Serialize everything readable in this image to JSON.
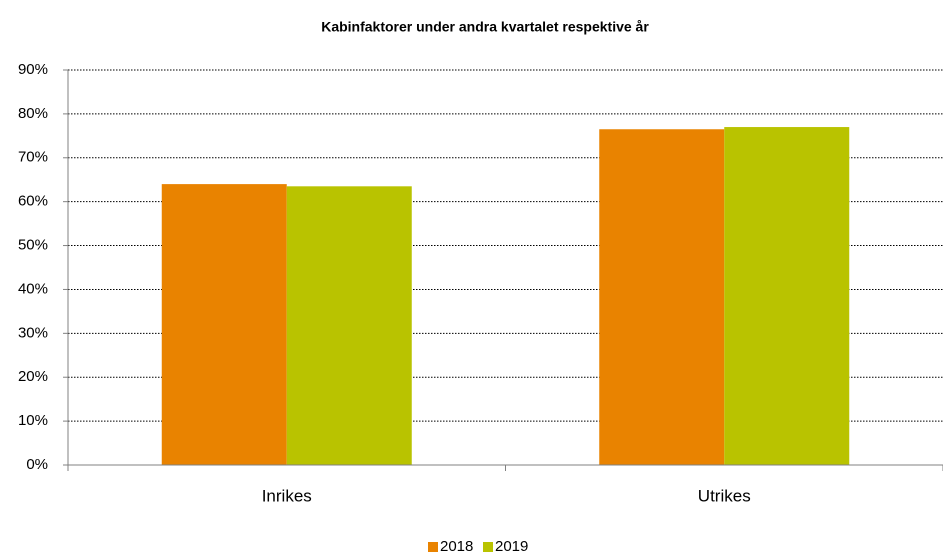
{
  "chart_data": {
    "type": "bar",
    "title": "Kabinfaktorer under andra kvartalet respektive år",
    "categories": [
      "Inrikes",
      "Utrikes"
    ],
    "series": [
      {
        "name": "2018",
        "color": "#e98300",
        "values": [
          64,
          76.5
        ]
      },
      {
        "name": "2019",
        "color": "#b9c300",
        "values": [
          63.5,
          77
        ]
      }
    ],
    "ylim": [
      0,
      90
    ],
    "yticks": [
      {
        "value": 0,
        "label": "0%"
      },
      {
        "value": 10,
        "label": "10%"
      },
      {
        "value": 20,
        "label": "20%"
      },
      {
        "value": 30,
        "label": "30%"
      },
      {
        "value": 40,
        "label": "40%"
      },
      {
        "value": 50,
        "label": "50%"
      },
      {
        "value": 60,
        "label": "60%"
      },
      {
        "value": 70,
        "label": "70%"
      },
      {
        "value": 80,
        "label": "80%"
      },
      {
        "value": 90,
        "label": "90%"
      }
    ],
    "grid": true,
    "legend": "bottom"
  }
}
